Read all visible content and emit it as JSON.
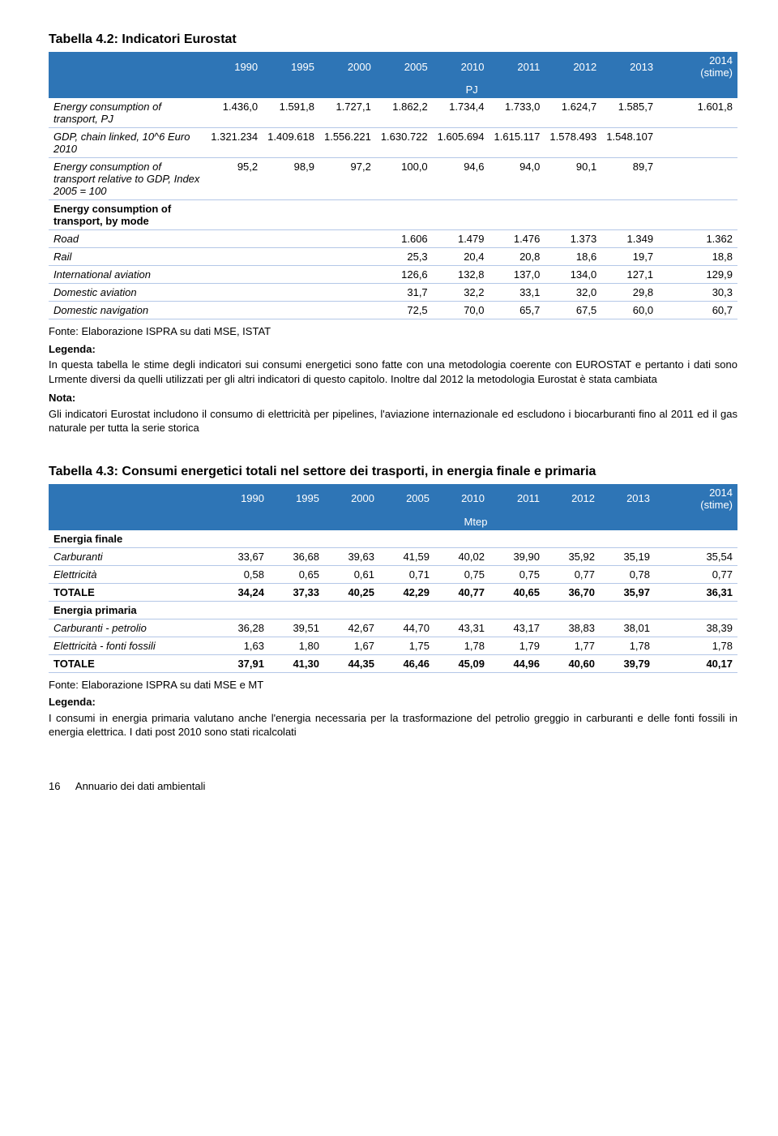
{
  "colors": {
    "header_bg": "#2e75b6",
    "header_fg": "#ffffff",
    "row_border": "#b4c7e7",
    "text": "#000000",
    "page_bg": "#ffffff"
  },
  "typography": {
    "body_family": "Arial, Helvetica, sans-serif",
    "body_size_pt": 10,
    "title_size_pt": 12,
    "title_weight": "bold"
  },
  "table1": {
    "type": "table",
    "title": "Tabella 4.2: Indicatori Eurostat",
    "years": [
      "1990",
      "1995",
      "2000",
      "2005",
      "2010",
      "2011",
      "2012",
      "2013",
      "2014 (stime)"
    ],
    "unit": "PJ",
    "col_widths_pct": [
      24,
      8,
      8,
      8,
      8,
      8,
      8,
      8,
      8,
      12
    ],
    "rows": [
      {
        "label": "Energy consumption of transport, PJ",
        "cells": [
          "1.436,0",
          "1.591,8",
          "1.727,1",
          "1.862,2",
          "1.734,4",
          "1.733,0",
          "1.624,7",
          "1.585,7",
          "1.601,8"
        ]
      },
      {
        "label": "GDP, chain linked, 10^6 Euro 2010",
        "cells": [
          "1.321.234",
          "1.409.618",
          "1.556.221",
          "1.630.722",
          "1.605.694",
          "1.615.117",
          "1.578.493",
          "1.548.107",
          ""
        ]
      },
      {
        "label": "Energy consumption of transport relative to GDP, Index 2005 = 100",
        "cells": [
          "95,2",
          "98,9",
          "97,2",
          "100,0",
          "94,6",
          "94,0",
          "90,1",
          "89,7",
          ""
        ]
      },
      {
        "label": "Energy consumption of transport, by mode",
        "section": true,
        "cells": [
          "",
          "",
          "",
          "",
          "",
          "",
          "",
          "",
          ""
        ]
      },
      {
        "label": "Road",
        "cells": [
          "",
          "",
          "",
          "1.606",
          "1.479",
          "1.476",
          "1.373",
          "1.349",
          "1.362"
        ]
      },
      {
        "label": "Rail",
        "cells": [
          "",
          "",
          "",
          "25,3",
          "20,4",
          "20,8",
          "18,6",
          "19,7",
          "18,8"
        ]
      },
      {
        "label": "International aviation",
        "cells": [
          "",
          "",
          "",
          "126,6",
          "132,8",
          "137,0",
          "134,0",
          "127,1",
          "129,9"
        ]
      },
      {
        "label": "Domestic aviation",
        "cells": [
          "",
          "",
          "",
          "31,7",
          "32,2",
          "33,1",
          "32,0",
          "29,8",
          "30,3"
        ]
      },
      {
        "label": "Domestic navigation",
        "cells": [
          "",
          "",
          "",
          "72,5",
          "70,0",
          "65,7",
          "67,5",
          "60,0",
          "60,7"
        ]
      }
    ],
    "source": "Fonte: Elaborazione ISPRA su dati MSE, ISTAT",
    "legenda_label": "Legenda:",
    "legenda_text": "In questa tabella le stime degli indicatori sui consumi energetici sono fatte con una metodologia coerente con EUROSTAT e pertanto i dati sono Lrmente diversi da quelli utilizzati per gli altri indicatori di questo capitolo. Inoltre dal 2012 la metodologia Eurostat è stata cambiata",
    "nota_label": "Nota:",
    "nota_text": "Gli indicatori Eurostat includono il consumo di elettricità per pipelines, l'aviazione internazionale ed escludono i biocarburanti fino al 2011 ed il gas naturale per tutta la serie storica"
  },
  "table2": {
    "type": "table",
    "title": "Tabella 4.3: Consumi energetici totali nel settore dei trasporti, in energia finale e primaria",
    "years": [
      "1990",
      "1995",
      "2000",
      "2005",
      "2010",
      "2011",
      "2012",
      "2013",
      "2014 (stime)"
    ],
    "unit": "Mtep",
    "col_widths_pct": [
      24,
      8,
      8,
      8,
      8,
      8,
      8,
      8,
      8,
      12
    ],
    "rows": [
      {
        "label": "Energia finale",
        "section": true,
        "cells": [
          "",
          "",
          "",
          "",
          "",
          "",
          "",
          "",
          ""
        ]
      },
      {
        "label": "Carburanti",
        "cells": [
          "33,67",
          "36,68",
          "39,63",
          "41,59",
          "40,02",
          "39,90",
          "35,92",
          "35,19",
          "35,54"
        ]
      },
      {
        "label": "Elettricità",
        "cells": [
          "0,58",
          "0,65",
          "0,61",
          "0,71",
          "0,75",
          "0,75",
          "0,77",
          "0,78",
          "0,77"
        ]
      },
      {
        "label": "TOTALE",
        "bold": true,
        "cells": [
          "34,24",
          "37,33",
          "40,25",
          "42,29",
          "40,77",
          "40,65",
          "36,70",
          "35,97",
          "36,31"
        ]
      },
      {
        "label": "Energia primaria",
        "section": true,
        "cells": [
          "",
          "",
          "",
          "",
          "",
          "",
          "",
          "",
          ""
        ]
      },
      {
        "label": "Carburanti - petrolio",
        "cells": [
          "36,28",
          "39,51",
          "42,67",
          "44,70",
          "43,31",
          "43,17",
          "38,83",
          "38,01",
          "38,39"
        ]
      },
      {
        "label": "Elettricità - fonti fossili",
        "cells": [
          "1,63",
          "1,80",
          "1,67",
          "1,75",
          "1,78",
          "1,79",
          "1,77",
          "1,78",
          "1,78"
        ]
      },
      {
        "label": "TOTALE",
        "bold": true,
        "cells": [
          "37,91",
          "41,30",
          "44,35",
          "46,46",
          "45,09",
          "44,96",
          "40,60",
          "39,79",
          "40,17"
        ]
      }
    ],
    "source": "Fonte: Elaborazione ISPRA su dati MSE e MT",
    "legenda_label": "Legenda:",
    "legenda_text": "I consumi in energia primaria valutano anche l'energia necessaria per la trasformazione del petrolio greggio in carburanti e delle fonti fossili in energia elettrica. I dati post 2010 sono stati ricalcolati"
  },
  "footer": {
    "page": "16",
    "text": "Annuario dei dati ambientali"
  }
}
